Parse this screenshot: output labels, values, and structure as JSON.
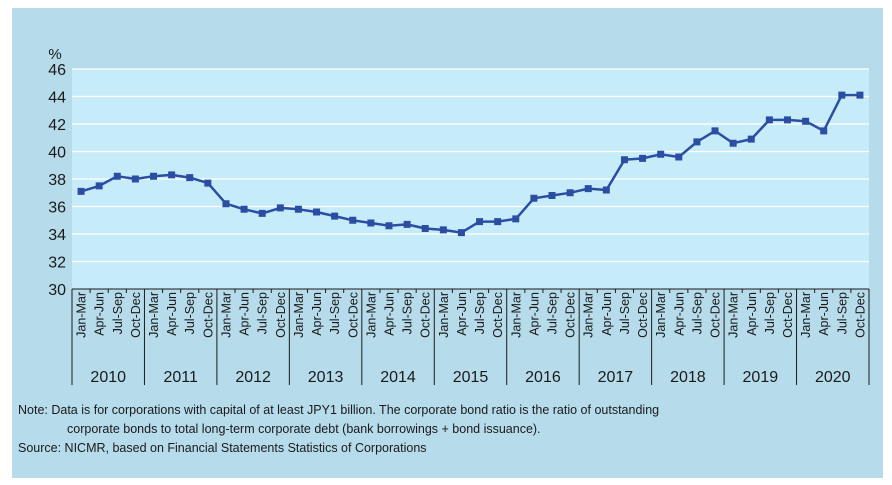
{
  "chart_data": {
    "type": "line",
    "ylabel": "%",
    "ylim": [
      30,
      46
    ],
    "yticks": [
      30,
      32,
      34,
      36,
      38,
      40,
      42,
      44,
      46
    ],
    "grid": true,
    "years": [
      "2010",
      "2011",
      "2012",
      "2013",
      "2014",
      "2015",
      "2016",
      "2017",
      "2018",
      "2019",
      "2020"
    ],
    "quarters": [
      "Jan-Mar",
      "Apr-Jun",
      "Jul-Sep",
      "Oct-Dec"
    ],
    "series": [
      {
        "values": [
          37.1,
          37.5,
          38.2,
          38.0,
          38.2,
          38.3,
          38.1,
          37.7,
          36.2,
          35.8,
          35.5,
          35.9,
          35.8,
          35.6,
          35.3,
          35.0,
          34.8,
          34.6,
          34.7,
          34.4,
          34.3,
          34.1,
          34.9,
          34.9,
          35.1,
          36.6,
          36.8,
          37.0,
          37.3,
          37.2,
          39.4,
          39.5,
          39.8,
          39.6,
          40.7,
          41.5,
          40.6,
          40.9,
          42.3,
          42.3,
          42.2,
          41.5,
          44.1,
          44.1
        ],
        "color": "#2b4ea3"
      }
    ]
  },
  "colors": {
    "panel": "#b6dbeb",
    "plot_bg": "#c6ecfa",
    "grid": "#ffffff",
    "line": "#2b4ea3"
  },
  "notes": {
    "line1": "Note: Data is for corporations with capital of at least JPY1 billion. The corporate bond ratio is the ratio of outstanding",
    "line2": "corporate bonds to total long-term corporate debt (bank borrowings + bond issuance).",
    "source": "Source: NICMR, based on Financial Statements Statistics of Corporations"
  }
}
